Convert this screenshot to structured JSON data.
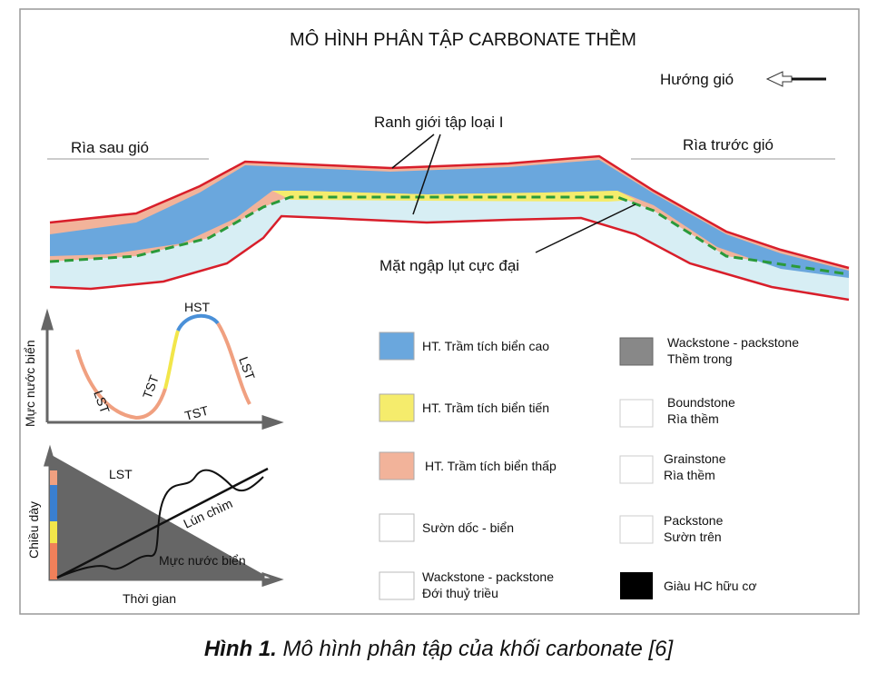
{
  "header": {
    "title": "MÔ HÌNH PHÂN TẬP CARBONATE THỀM",
    "wind": "Hướng gió"
  },
  "cross_section": {
    "left_margin": "Rìa sau gió",
    "right_margin": "Rìa trước gió",
    "boundary": "Ranh giới tập loại I",
    "flooding_surface": "Mặt ngập lụt cực đại"
  },
  "sea_level_curve": {
    "y_label": "Mực nước biển",
    "labels": [
      "LST",
      "TST",
      "HST",
      "TST",
      "LST"
    ]
  },
  "thickness_plot": {
    "y_label": "Chiều dày",
    "x_label": "Thời gian",
    "lst": "LST",
    "subsidence": "Lún chìm",
    "sea_level": "Mực nước biển"
  },
  "legend": {
    "items": [
      {
        "lines": [
          "HT. Trầm tích biển cao"
        ]
      },
      {
        "lines": [
          "HT. Trầm tích biển tiến"
        ]
      },
      {
        "lines": [
          "HT. Trầm tích biển thấp"
        ]
      },
      {
        "lines": [
          "Sườn dốc - biển"
        ]
      },
      {
        "lines": [
          "Wackstone - packstone",
          "Đới thuỷ triều"
        ]
      },
      {
        "lines": [
          "Wackstone - packstone",
          "Thềm trong"
        ]
      },
      {
        "lines": [
          "Boundstone",
          "Rìa thềm"
        ]
      },
      {
        "lines": [
          "Grainstone",
          "Rìa thềm"
        ]
      },
      {
        "lines": [
          "Packstone",
          "Sườn trên"
        ]
      },
      {
        "lines": [
          "Giàu HC hữu cơ"
        ]
      }
    ]
  },
  "caption": {
    "label": "Hình 1.",
    "text": "Mô hình phân tập của khối carbonate [6]"
  }
}
